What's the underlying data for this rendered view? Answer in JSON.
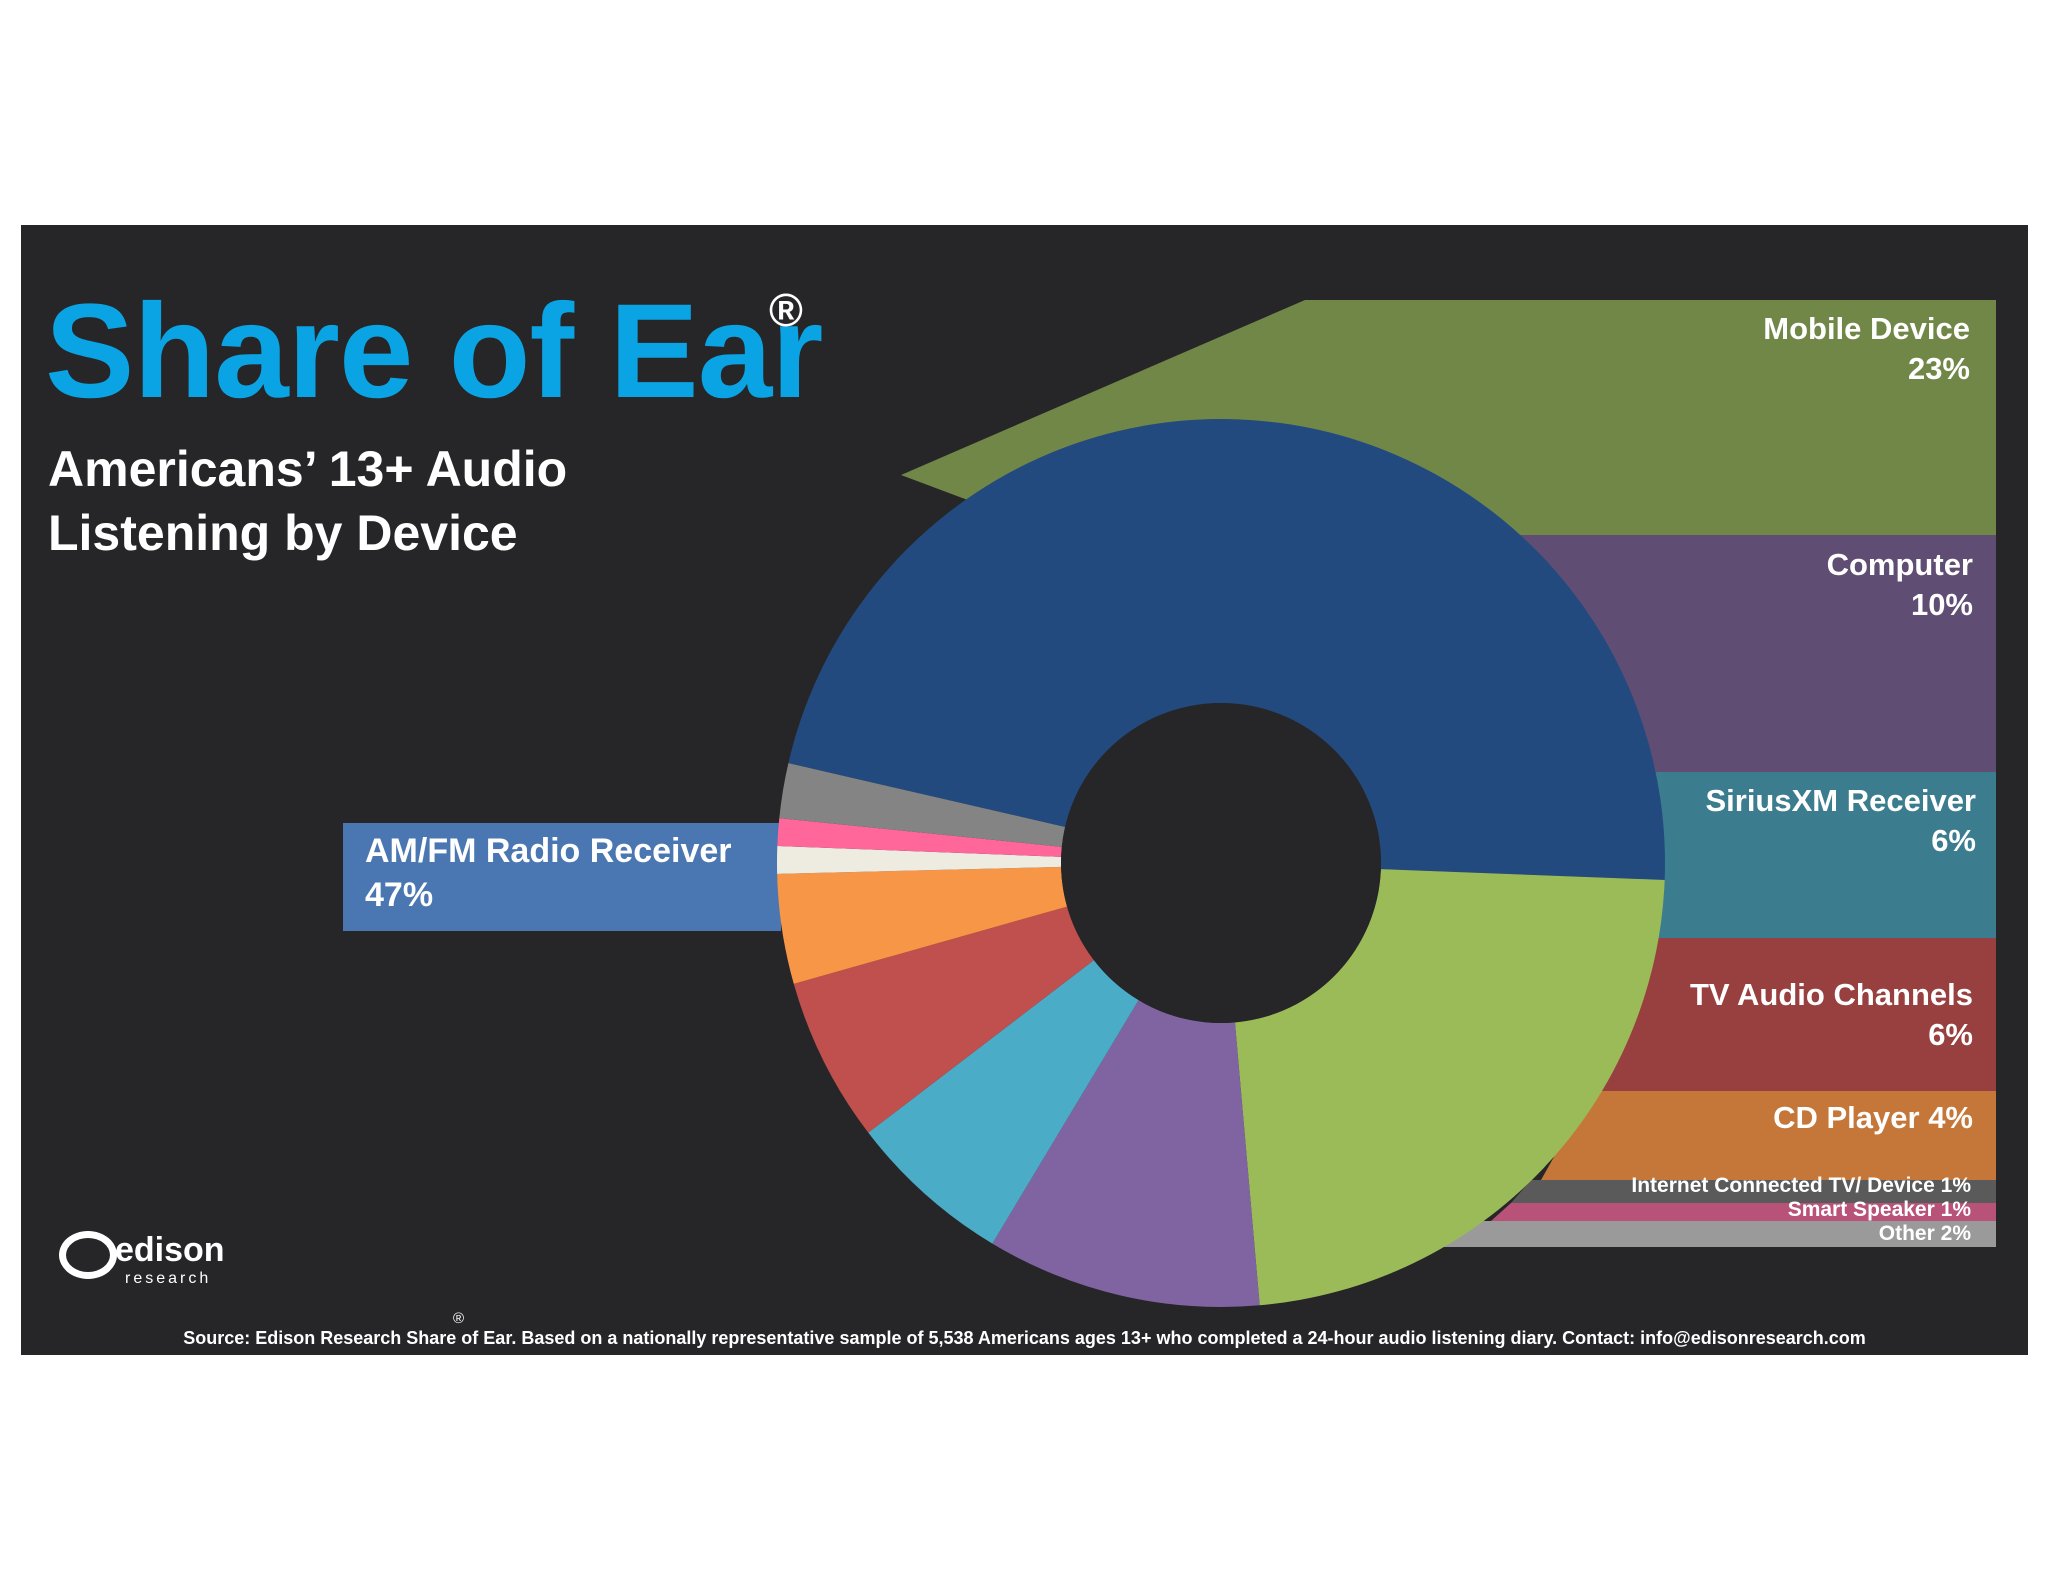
{
  "header": {
    "title": "Share of Ear",
    "title_mark": "®",
    "subtitle_line1": "Americans’ 13+ Audio",
    "subtitle_line2": "Listening by Device"
  },
  "colors": {
    "background": "#262628",
    "title": "#0aa4e4"
  },
  "chart_data": {
    "type": "pie",
    "donut": true,
    "unit": "%",
    "slices": [
      {
        "name": "AM/FM Radio Receiver",
        "value": 47,
        "label": "47%",
        "color": "#234a7e",
        "label_color": "#4a77b2"
      },
      {
        "name": "Mobile Device",
        "value": 23,
        "label": "23%",
        "color": "#9bbb59",
        "label_color": "#718748"
      },
      {
        "name": "Computer",
        "value": 10,
        "label": "10%",
        "color": "#8064a2",
        "label_color": "#604d74"
      },
      {
        "name": "SiriusXM Receiver",
        "value": 6,
        "label": "6%",
        "color": "#4aacc6",
        "label_color": "#3b7d8f"
      },
      {
        "name": "TV Audio Channels",
        "value": 6,
        "label": "6%",
        "color": "#c0504d",
        "label_color": "#983f3f"
      },
      {
        "name": "CD Player",
        "value": 4,
        "label": "4%",
        "color": "#f79646",
        "label_color": "#c47739"
      },
      {
        "name": "Internet Connected TV/ Device",
        "value": 1,
        "label": "1%",
        "color": "#eeece1",
        "label_color": "#5a5a5a"
      },
      {
        "name": "Smart Speaker",
        "value": 1,
        "label": "1%",
        "color": "#ff6699",
        "label_color": "#b95279"
      },
      {
        "name": "Other",
        "value": 2,
        "label": "2%",
        "color": "#848484",
        "label_color": "#9a9a9a"
      }
    ]
  },
  "logo": {
    "word": "edison",
    "sub": "research"
  },
  "footer": {
    "source_text": "Source: Edison Research Share of Ear. Based on a nationally representative sample of 5,538 Americans ages 13+ who completed a 24-hour audio listening diary.  Contact: info@edisonresearch.com",
    "source_mark": "®"
  }
}
